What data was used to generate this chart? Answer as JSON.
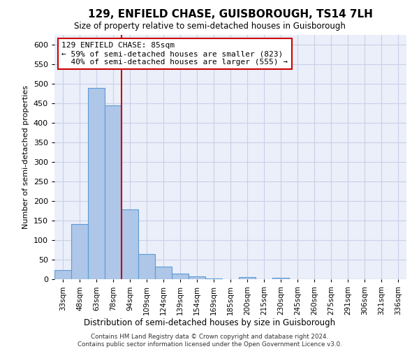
{
  "title": "129, ENFIELD CHASE, GUISBOROUGH, TS14 7LH",
  "subtitle": "Size of property relative to semi-detached houses in Guisborough",
  "xlabel": "Distribution of semi-detached houses by size in Guisborough",
  "ylabel": "Number of semi-detached properties",
  "footer": "Contains HM Land Registry data © Crown copyright and database right 2024.\nContains public sector information licensed under the Open Government Licence v3.0.",
  "categories": [
    "33sqm",
    "48sqm",
    "63sqm",
    "78sqm",
    "94sqm",
    "109sqm",
    "124sqm",
    "139sqm",
    "154sqm",
    "169sqm",
    "185sqm",
    "200sqm",
    "215sqm",
    "230sqm",
    "245sqm",
    "260sqm",
    "275sqm",
    "291sqm",
    "306sqm",
    "321sqm",
    "336sqm"
  ],
  "heights": [
    23,
    141,
    490,
    445,
    178,
    65,
    33,
    14,
    8,
    1,
    0,
    5,
    0,
    4,
    0,
    0,
    0,
    0,
    0,
    0,
    0
  ],
  "property_label": "129 ENFIELD CHASE: 85sqm",
  "pct_smaller": 59,
  "pct_larger": 40,
  "n_smaller": 823,
  "n_larger": 555,
  "property_vline_x": 3.5,
  "bar_color": "#aec6e8",
  "bar_edge_color": "#5b9bd5",
  "vline_color": "#cc0000",
  "box_edge_color": "#cc0000",
  "bg_color": "#eaeff9",
  "grid_color": "#c8d0e8",
  "ylim_max": 625,
  "yticks": [
    0,
    50,
    100,
    150,
    200,
    250,
    300,
    350,
    400,
    450,
    500,
    550,
    600
  ]
}
